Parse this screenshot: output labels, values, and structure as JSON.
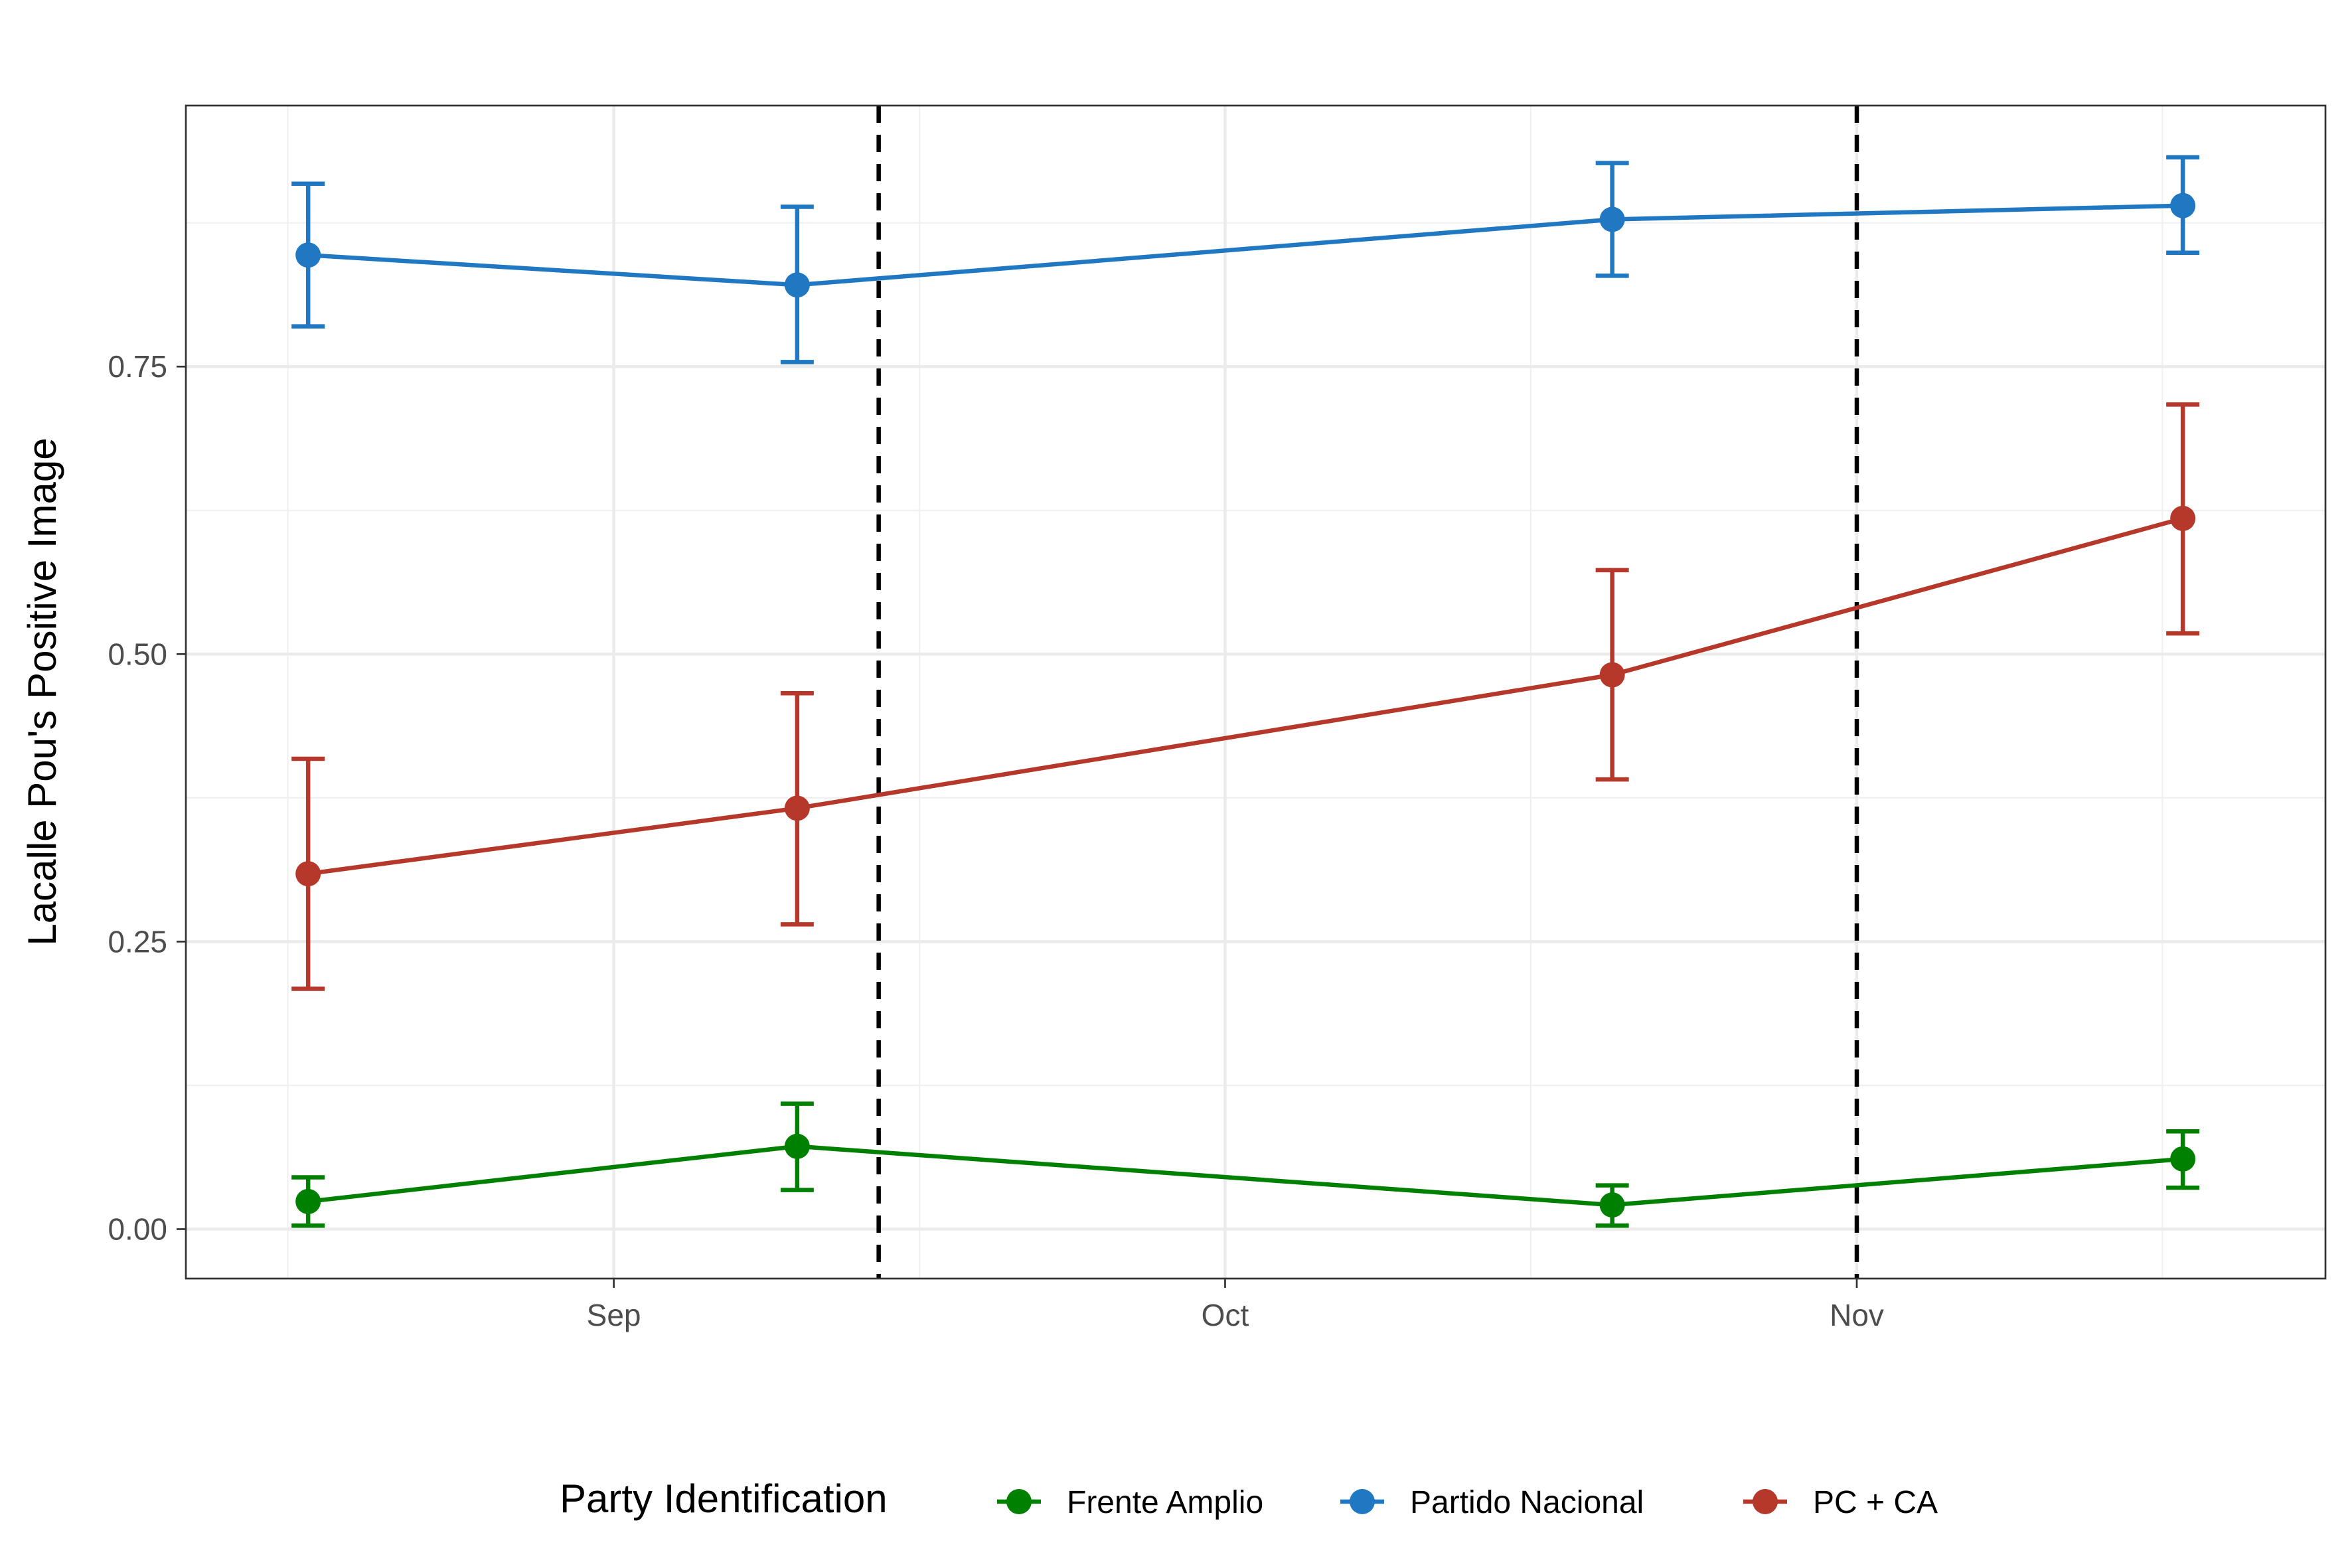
{
  "chart_data": {
    "type": "line",
    "title": "",
    "xlabel": "",
    "ylabel": "Lacalle Pou's Positive Image",
    "x_axis": {
      "type": "date",
      "range": [
        "2019-08-11",
        "2019-11-24"
      ],
      "ticks": [
        {
          "date": "2019-09-01",
          "label": "Sep"
        },
        {
          "date": "2019-10-01",
          "label": "Oct"
        },
        {
          "date": "2019-11-01",
          "label": "Nov"
        }
      ],
      "minor_ticks": [
        "2019-08-16",
        "2019-09-16",
        "2019-10-16",
        "2019-11-16"
      ]
    },
    "y_axis": {
      "range": [
        -0.043,
        0.977
      ],
      "ticks": [
        {
          "value": 0.0,
          "label": "0.00"
        },
        {
          "value": 0.25,
          "label": "0.25"
        },
        {
          "value": 0.5,
          "label": "0.50"
        },
        {
          "value": 0.75,
          "label": "0.75"
        }
      ],
      "minor_ticks": [
        0.125,
        0.375,
        0.625,
        0.875
      ]
    },
    "grid": true,
    "vlines": [
      {
        "date": "2019-09-14",
        "style": "dashed"
      },
      {
        "date": "2019-11-01",
        "style": "dashed"
      }
    ],
    "legend": {
      "title": "Party Identification",
      "position": "bottom"
    },
    "series": [
      {
        "name": "Frente Amplio",
        "color": "#008000",
        "points": [
          {
            "date": "2019-08-17",
            "y": 0.024,
            "ymin": 0.003,
            "ymax": 0.045
          },
          {
            "date": "2019-09-10",
            "y": 0.072,
            "ymin": 0.034,
            "ymax": 0.109
          },
          {
            "date": "2019-10-20",
            "y": 0.021,
            "ymin": 0.003,
            "ymax": 0.038
          },
          {
            "date": "2019-11-17",
            "y": 0.061,
            "ymin": 0.036,
            "ymax": 0.085
          }
        ]
      },
      {
        "name": "Partido Nacional",
        "color": "#1f78c1",
        "points": [
          {
            "date": "2019-08-17",
            "y": 0.847,
            "ymin": 0.785,
            "ymax": 0.909
          },
          {
            "date": "2019-09-10",
            "y": 0.821,
            "ymin": 0.754,
            "ymax": 0.889
          },
          {
            "date": "2019-10-20",
            "y": 0.878,
            "ymin": 0.829,
            "ymax": 0.927
          },
          {
            "date": "2019-11-17",
            "y": 0.89,
            "ymin": 0.849,
            "ymax": 0.932
          }
        ]
      },
      {
        "name": "PC + CA",
        "color": "#b5382a",
        "points": [
          {
            "date": "2019-08-17",
            "y": 0.309,
            "ymin": 0.209,
            "ymax": 0.409
          },
          {
            "date": "2019-09-10",
            "y": 0.366,
            "ymin": 0.265,
            "ymax": 0.466
          },
          {
            "date": "2019-10-20",
            "y": 0.482,
            "ymin": 0.391,
            "ymax": 0.573
          },
          {
            "date": "2019-11-17",
            "y": 0.618,
            "ymin": 0.518,
            "ymax": 0.717
          }
        ]
      }
    ]
  }
}
